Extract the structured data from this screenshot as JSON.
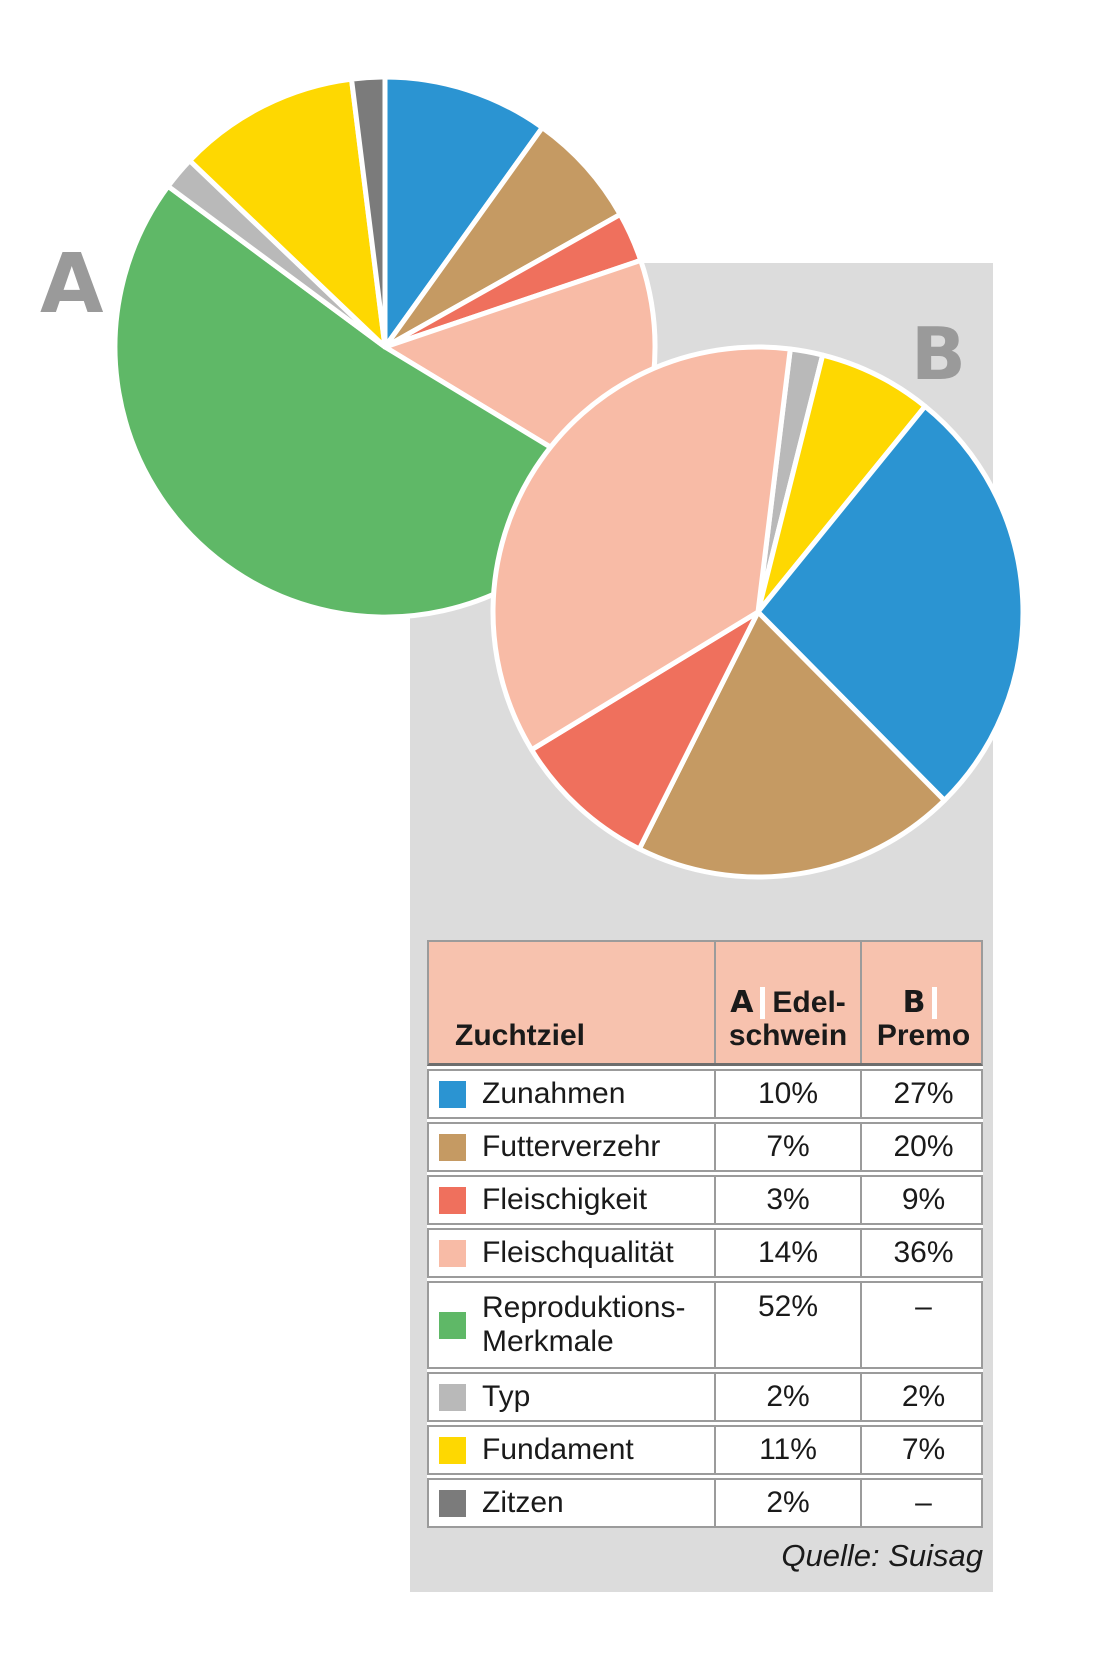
{
  "ui": {
    "panel_color": "#dcdcdc",
    "table_header_bg": "#f7c2ae",
    "table_border_color": "#9b9b9b",
    "header_rule_color": "#6e6e6e",
    "chart_letter_color": "#9a9a9a",
    "text_color": "#1a1a1a",
    "slice_gap_color": "#ffffff"
  },
  "category_colors": {
    "Zunahmen": "#2b94d2",
    "Futterverzehr": "#c59a63",
    "Fleischigkeit": "#ef705d",
    "Fleischqualität": "#f8bba6",
    "Reproduktions-Merkmale": "#5fb867",
    "Typ": "#b9b9b9",
    "Fundament": "#fed801",
    "Zitzen": "#7b7b7b"
  },
  "chart_labels": {
    "a": "A",
    "b": "B"
  },
  "chart_data": [
    {
      "type": "pie",
      "name": "A",
      "start_angle_deg": 0,
      "slices_clockwise_from_top": [
        {
          "label": "Zunahmen",
          "value_pct": 10
        },
        {
          "label": "Futterverzehr",
          "value_pct": 7
        },
        {
          "label": "Fleischigkeit",
          "value_pct": 3
        },
        {
          "label": "Fleischqualität",
          "value_pct": 14
        },
        {
          "label": "Reproduktions-Merkmale",
          "value_pct": 52
        },
        {
          "label": "Typ",
          "value_pct": 2
        },
        {
          "label": "Fundament",
          "value_pct": 11
        },
        {
          "label": "Zitzen",
          "value_pct": 2
        }
      ]
    },
    {
      "type": "pie",
      "name": "B",
      "start_angle_deg": 7,
      "slices_clockwise_from_top": [
        {
          "label": "Typ",
          "value_pct": 2
        },
        {
          "label": "Fundament",
          "value_pct": 7
        },
        {
          "label": "Zunahmen",
          "value_pct": 27
        },
        {
          "label": "Futterverzehr",
          "value_pct": 20
        },
        {
          "label": "Fleischigkeit",
          "value_pct": 9
        },
        {
          "label": "Fleischqualität",
          "value_pct": 36
        }
      ]
    }
  ],
  "table": {
    "header": {
      "col_goal": "Zuchtziel",
      "col_a": {
        "letter": "A",
        "line1_rest": "Edel-",
        "line2": "schwein"
      },
      "col_b": {
        "letter": "B",
        "line1_rest": "",
        "line2": "Premo"
      }
    },
    "rows": [
      {
        "label": "Zunahmen",
        "a": "10%",
        "b": "27%"
      },
      {
        "label": "Futterverzehr",
        "a": "7%",
        "b": "20%"
      },
      {
        "label": "Fleischigkeit",
        "a": "3%",
        "b": "9%"
      },
      {
        "label": "Fleischqualität",
        "a": "14%",
        "b": "36%"
      },
      {
        "label": "Reproduktions-\nMerkmale",
        "a": "52%",
        "b": "–",
        "tall": true
      },
      {
        "label": "Typ",
        "a": "2%",
        "b": "2%"
      },
      {
        "label": "Fundament",
        "a": "11%",
        "b": "7%"
      },
      {
        "label": "Zitzen",
        "a": "2%",
        "b": "–"
      }
    ]
  },
  "source": "Quelle: Suisag"
}
